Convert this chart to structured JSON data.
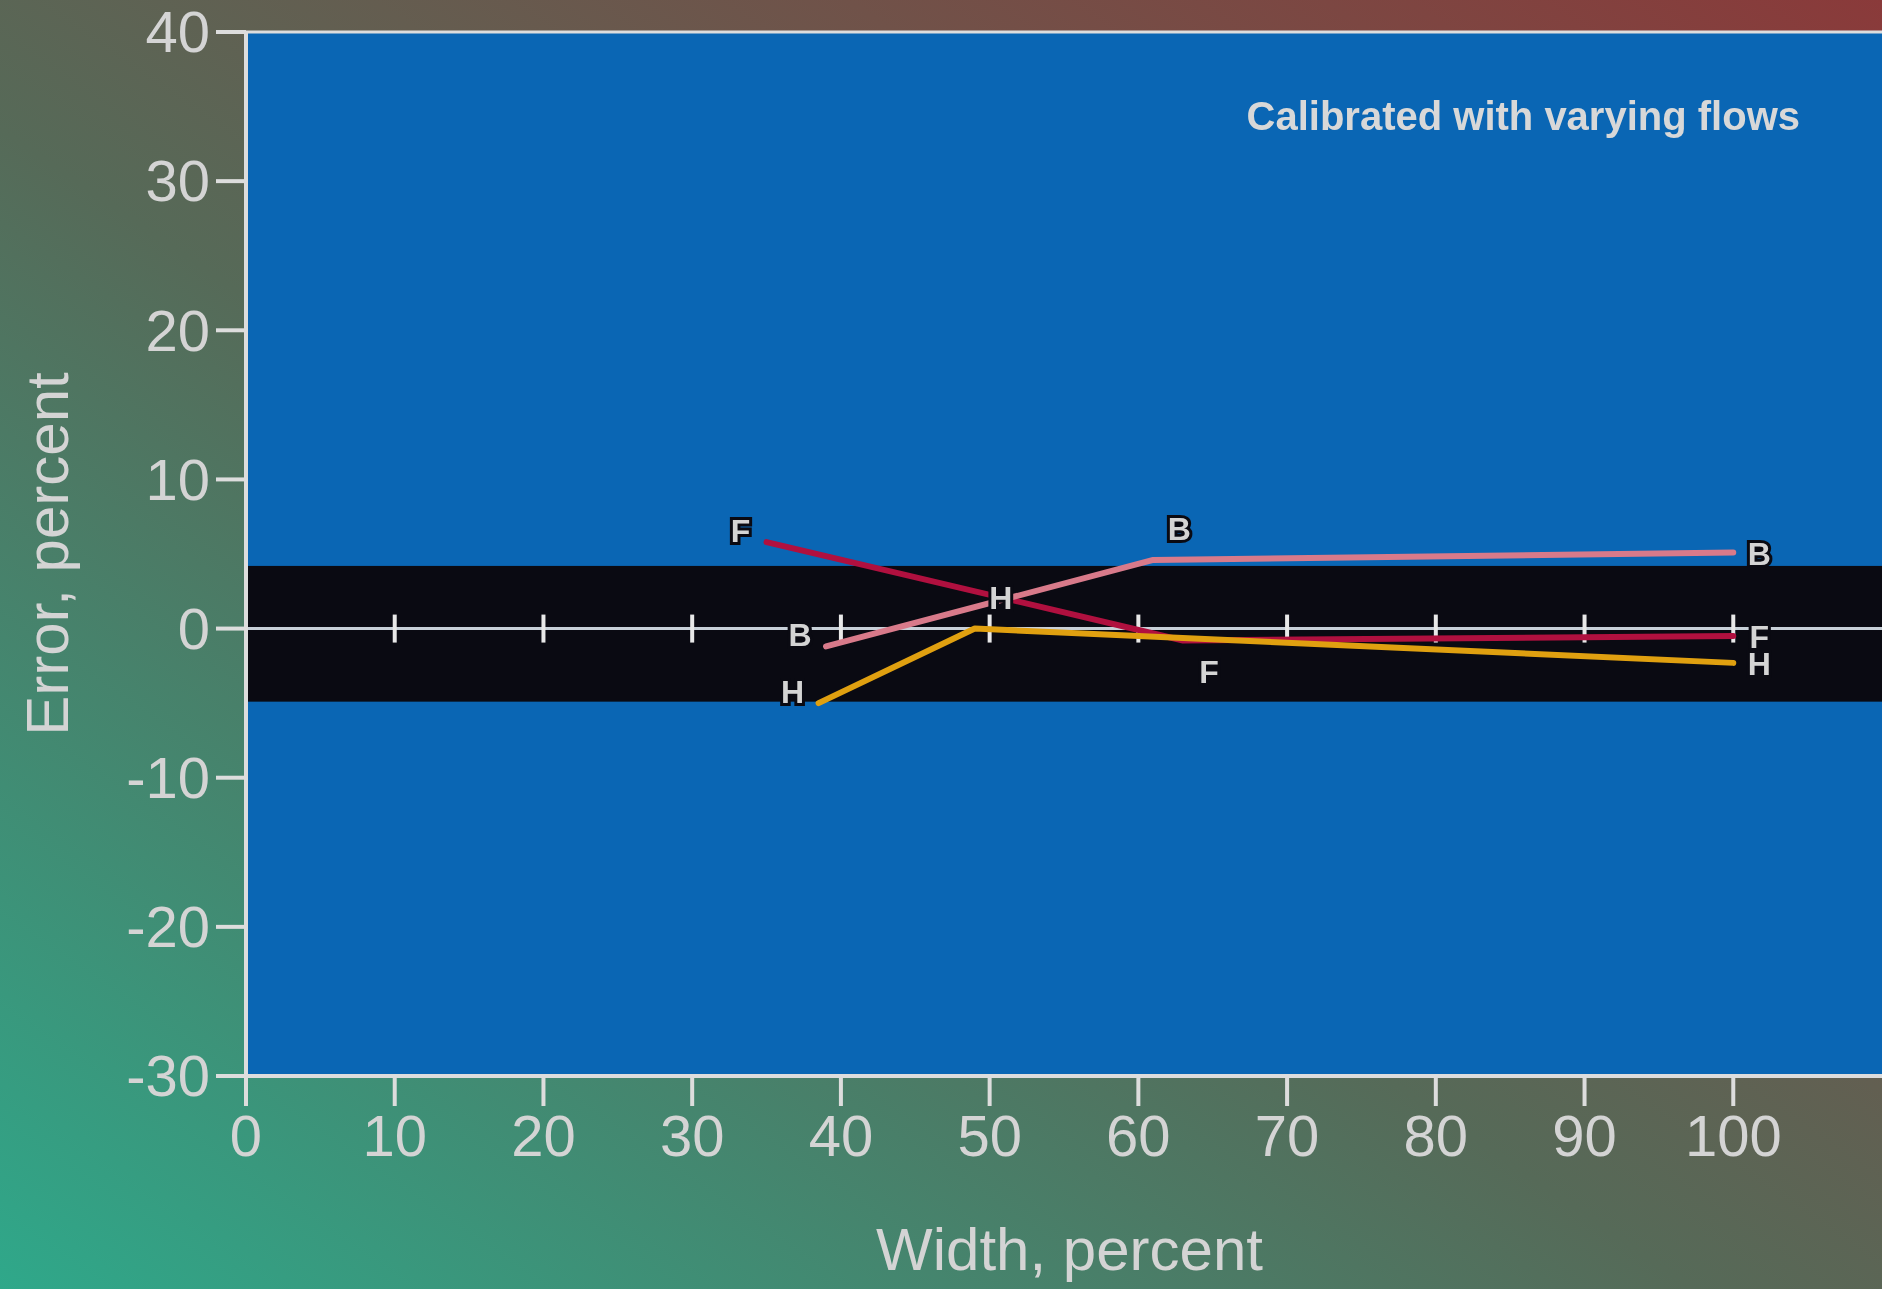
{
  "chart_data": {
    "type": "line",
    "xlabel": "Width, percent",
    "ylabel": "Error, percent",
    "xlim": [
      0,
      110
    ],
    "ylim": [
      -30,
      40
    ],
    "xticks": [
      0,
      10,
      20,
      30,
      40,
      50,
      60,
      70,
      80,
      90,
      100
    ],
    "yticks": [
      -30,
      -20,
      -10,
      0,
      10,
      20,
      30,
      40
    ],
    "annotations": [
      "Calibrated with varying flows"
    ],
    "marker": "none",
    "grid": false,
    "bands": [
      {
        "axis": "y",
        "from": -4.9,
        "to": 4.2,
        "color": "#0a0a12"
      }
    ],
    "ref_lines": [
      {
        "axis": "y",
        "value": 0,
        "color": "#c8d0d8"
      }
    ],
    "series": [
      {
        "name": "F",
        "color": "#b0103f",
        "x": [
          35,
          63,
          100
        ],
        "values": [
          5.8,
          -0.8,
          -0.5
        ]
      },
      {
        "name": "B",
        "color": "#d87a8a",
        "x": [
          39,
          61,
          100
        ],
        "values": [
          -1.2,
          4.6,
          5.1
        ]
      },
      {
        "name": "H",
        "color": "#e0a010",
        "x": [
          38.5,
          49,
          100
        ],
        "values": [
          -5,
          0,
          -2.3
        ]
      }
    ]
  }
}
